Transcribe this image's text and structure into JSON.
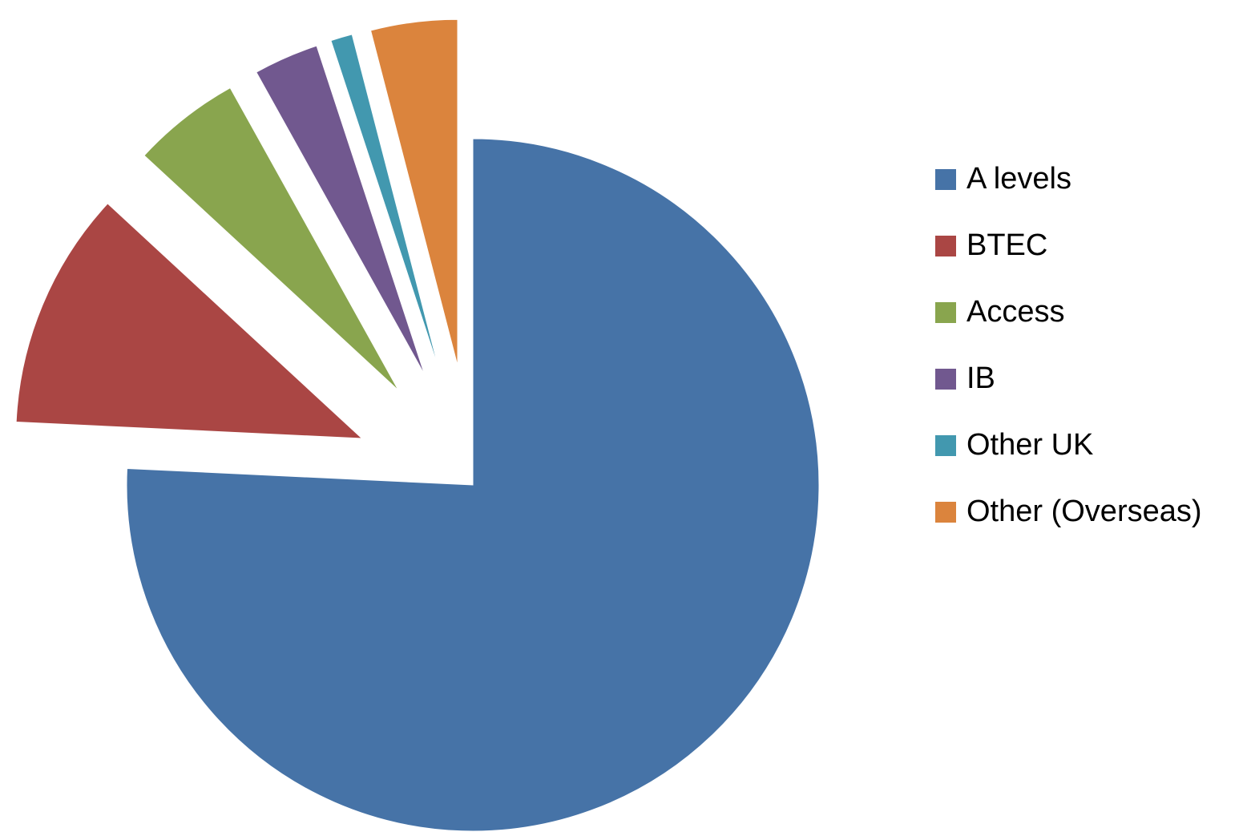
{
  "chart_data": {
    "type": "pie",
    "exploded": true,
    "title": "",
    "legend_position": "right",
    "slices": [
      {
        "label": "A levels",
        "value": 75,
        "color": "#4673A7"
      },
      {
        "label": "BTEC",
        "value": 11,
        "color": "#AA4644"
      },
      {
        "label": "Access",
        "value": 5,
        "color": "#89A54E"
      },
      {
        "label": "IB",
        "value": 3,
        "color": "#71588F"
      },
      {
        "label": "Other UK",
        "value": 1,
        "color": "#4298AF"
      },
      {
        "label": "Other (Overseas)",
        "value": 4,
        "color": "#DB843D"
      }
    ]
  }
}
